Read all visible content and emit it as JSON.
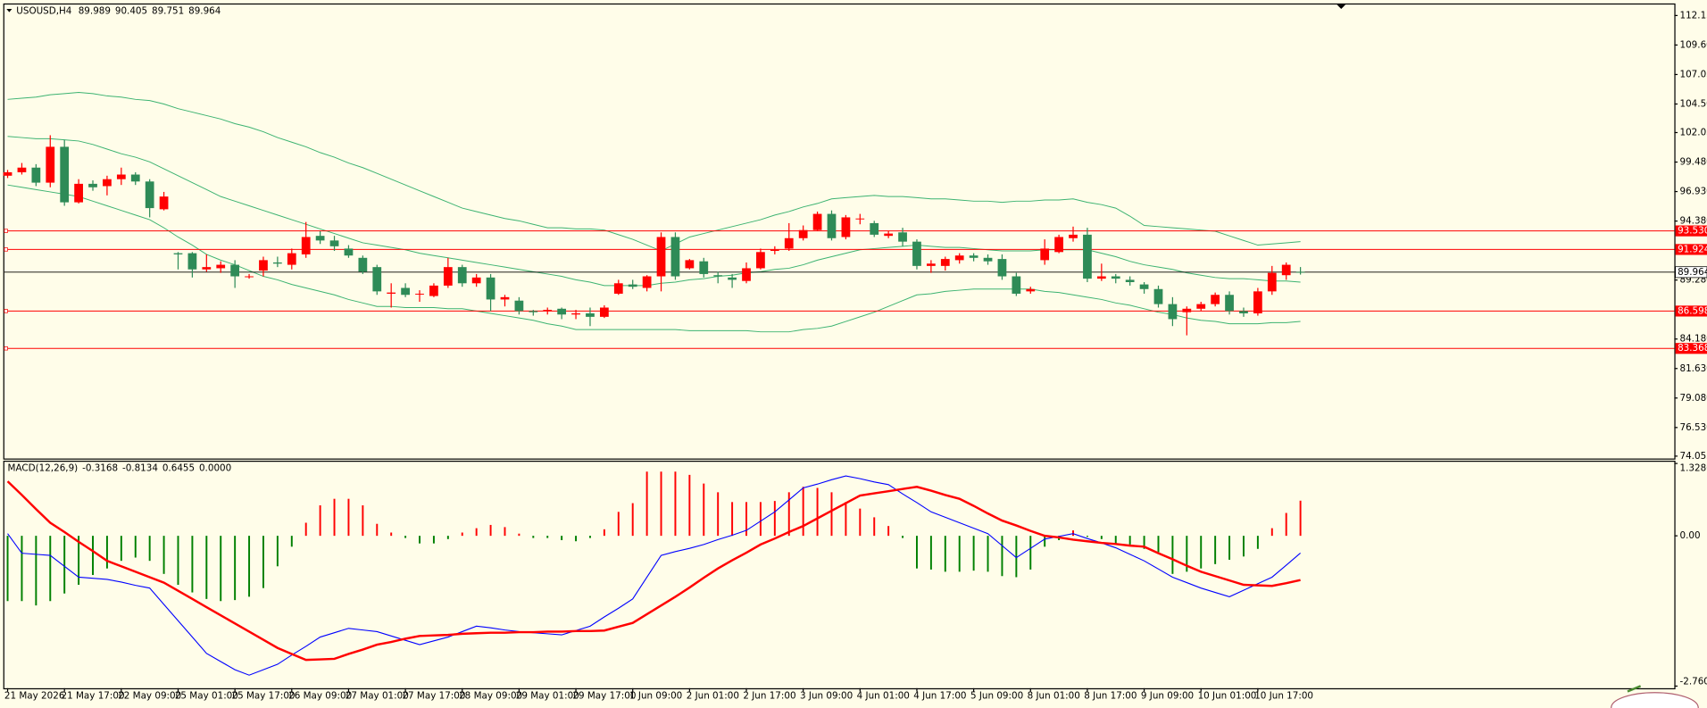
{
  "chart_data": [
    {
      "type": "candlestick",
      "title": "USOUSD,H4",
      "categories": [
        "21 May 2026",
        null,
        null,
        null,
        "21 May 17:00",
        null,
        null,
        null,
        "22 May 09:00",
        null,
        null,
        null,
        "25 May 01:00",
        null,
        null,
        null,
        "25 May 17:00",
        null,
        null,
        null,
        "26 May 09:00",
        null,
        null,
        null,
        "27 May 01:00",
        null,
        null,
        null,
        "27 May 17:00",
        null,
        null,
        null,
        "28 May 09:00",
        null,
        null,
        null,
        "29 May 01:00",
        null,
        null,
        null,
        "29 May 17:00",
        null,
        null,
        null,
        "1 Jun 09:00",
        null,
        null,
        null,
        "2 Jun 01:00",
        null,
        null,
        null,
        "2 Jun 17:00",
        null,
        null,
        null,
        "3 Jun 09:00",
        null,
        null,
        null,
        "4 Jun 01:00",
        null,
        null,
        null,
        "4 Jun 17:00",
        null,
        null,
        null,
        "5 Jun 09:00",
        null,
        null,
        null,
        "8 Jun 01:00",
        null,
        null,
        null,
        "8 Jun 17:00",
        null,
        null,
        null,
        "9 Jun 09:00",
        null,
        null,
        null,
        "10 Jun 01:00",
        null,
        null,
        null,
        "10 Jun 17:00",
        null,
        null,
        null
      ],
      "open": [
        98.3,
        98.6,
        99.0,
        97.7,
        100.8,
        96.0,
        97.6,
        97.4,
        98.0,
        98.4,
        97.8,
        95.4,
        91.6,
        91.6,
        90.2,
        90.3,
        90.6,
        89.6,
        90.1,
        90.8,
        90.6,
        91.5,
        93.1,
        92.7,
        92.0,
        91.2,
        90.4,
        88.1,
        88.6,
        88.1,
        87.9,
        88.8,
        90.4,
        89.0,
        89.5,
        87.6,
        87.5,
        86.6,
        86.6,
        86.8,
        86.3,
        86.4,
        86.1,
        88.1,
        88.9,
        88.6,
        89.6,
        93.0,
        90.3,
        90.9,
        89.7,
        89.5,
        89.2,
        90.3,
        91.8,
        92.0,
        92.9,
        93.6,
        95.0,
        93.0,
        94.6,
        94.2,
        93.1,
        93.4,
        92.6,
        90.5,
        90.5,
        91.0,
        91.4,
        91.2,
        91.1,
        89.6,
        88.3,
        91.0,
        91.7,
        92.9,
        93.2,
        89.4,
        89.6,
        89.3,
        88.9,
        88.5,
        87.2,
        86.5,
        86.8,
        87.2,
        88.0,
        86.6,
        86.4,
        88.3,
        89.7,
        89.989
      ],
      "high": [
        98.8,
        99.4,
        99.3,
        101.8,
        101.4,
        98.0,
        97.9,
        98.3,
        99.0,
        98.6,
        98.0,
        96.9,
        91.7,
        91.7,
        91.5,
        90.9,
        91.0,
        89.8,
        91.3,
        91.3,
        92.0,
        94.3,
        93.5,
        93.1,
        92.3,
        91.4,
        90.6,
        89.0,
        89.0,
        88.4,
        89.0,
        91.2,
        90.6,
        89.8,
        89.8,
        88.0,
        87.8,
        86.7,
        86.9,
        86.9,
        86.7,
        86.9,
        87.1,
        89.3,
        89.3,
        89.7,
        93.4,
        93.4,
        91.1,
        91.2,
        90.0,
        89.8,
        90.8,
        92.0,
        92.2,
        94.2,
        94.0,
        95.2,
        95.3,
        94.9,
        95.0,
        94.4,
        93.5,
        93.8,
        92.8,
        91.0,
        91.3,
        91.6,
        91.6,
        91.5,
        91.5,
        89.9,
        88.7,
        92.8,
        93.2,
        93.9,
        93.8,
        90.7,
        89.8,
        89.6,
        89.1,
        88.8,
        87.8,
        87.0,
        87.4,
        88.2,
        88.3,
        86.9,
        88.6,
        90.5,
        90.8,
        90.405
      ],
      "low": [
        98.1,
        98.4,
        97.4,
        97.3,
        95.7,
        95.9,
        97.0,
        96.6,
        97.5,
        97.5,
        94.7,
        95.3,
        90.2,
        89.5,
        90.0,
        89.9,
        88.6,
        89.4,
        89.6,
        90.4,
        90.2,
        91.2,
        92.4,
        91.8,
        91.2,
        89.8,
        88.0,
        86.9,
        87.8,
        87.4,
        87.8,
        88.6,
        88.7,
        88.7,
        86.6,
        87.0,
        86.3,
        86.2,
        86.3,
        85.9,
        85.9,
        85.3,
        86.0,
        88.0,
        88.5,
        88.3,
        88.3,
        89.3,
        90.2,
        89.5,
        89.0,
        88.6,
        89.0,
        90.2,
        91.5,
        91.8,
        92.7,
        93.5,
        92.7,
        92.8,
        94.1,
        93.0,
        92.9,
        92.2,
        90.2,
        89.9,
        90.1,
        90.7,
        90.9,
        90.6,
        89.3,
        87.9,
        88.1,
        90.6,
        91.6,
        92.6,
        89.1,
        89.2,
        89.0,
        88.8,
        88.1,
        86.9,
        85.3,
        84.5,
        86.6,
        87.0,
        86.3,
        86.1,
        86.2,
        88.0,
        89.3,
        89.751
      ],
      "close": [
        98.6,
        99.0,
        97.7,
        100.8,
        96.0,
        97.6,
        97.3,
        98.0,
        98.4,
        97.8,
        95.5,
        96.5,
        91.5,
        90.2,
        90.4,
        90.6,
        89.6,
        89.6,
        91.0,
        90.7,
        91.6,
        93.0,
        92.7,
        92.2,
        91.4,
        90.0,
        88.3,
        88.2,
        88.0,
        88.1,
        88.8,
        90.4,
        89.0,
        89.5,
        87.6,
        87.8,
        86.6,
        86.5,
        86.7,
        86.3,
        86.4,
        86.1,
        86.9,
        89.0,
        88.7,
        89.6,
        93.0,
        89.6,
        91.0,
        89.8,
        89.6,
        89.3,
        90.3,
        91.7,
        91.9,
        92.9,
        93.6,
        95.0,
        92.9,
        94.7,
        94.6,
        93.2,
        93.3,
        92.6,
        90.5,
        90.7,
        91.1,
        91.4,
        91.2,
        90.9,
        89.6,
        88.1,
        88.5,
        92.0,
        93.0,
        93.2,
        89.4,
        89.6,
        89.4,
        89.1,
        88.5,
        87.2,
        85.9,
        86.8,
        87.2,
        88.0,
        86.6,
        86.4,
        88.3,
        89.9,
        90.6,
        89.964
      ],
      "up_color": "#ff0000",
      "down_color": "#2e8b57",
      "bands": {
        "color": "#3cb371",
        "upper": [
          104.9,
          105.0,
          105.1,
          105.3,
          105.4,
          105.5,
          105.4,
          105.2,
          105.1,
          104.9,
          104.8,
          104.5,
          104.1,
          103.8,
          103.5,
          103.2,
          102.8,
          102.5,
          102.1,
          101.6,
          101.2,
          100.8,
          100.3,
          99.9,
          99.4,
          99.0,
          98.5,
          98.0,
          97.5,
          97.0,
          96.5,
          96.0,
          95.5,
          95.2,
          94.9,
          94.6,
          94.4,
          94.1,
          93.8,
          93.8,
          93.7,
          93.7,
          93.6,
          93.2,
          92.8,
          92.3,
          91.8,
          92.4,
          93.0,
          93.3,
          93.6,
          93.9,
          94.2,
          94.5,
          94.9,
          95.2,
          95.6,
          95.9,
          96.3,
          96.4,
          96.5,
          96.6,
          96.5,
          96.5,
          96.4,
          96.3,
          96.3,
          96.2,
          96.1,
          96.1,
          96.0,
          96.1,
          96.1,
          96.2,
          96.2,
          96.3,
          96.0,
          95.8,
          95.5,
          94.8,
          94.0,
          93.9,
          93.8,
          93.7,
          93.6,
          93.5,
          93.1,
          92.7,
          92.3,
          92.4,
          92.5,
          92.6
        ],
        "middle": [
          101.7,
          101.6,
          101.5,
          101.5,
          101.4,
          101.3,
          101.0,
          100.6,
          100.2,
          99.9,
          99.5,
          98.9,
          98.3,
          97.7,
          97.1,
          96.5,
          96.1,
          95.7,
          95.3,
          94.9,
          94.5,
          94.1,
          93.7,
          93.3,
          92.9,
          92.5,
          92.3,
          92.1,
          91.9,
          91.6,
          91.4,
          91.2,
          91.0,
          90.8,
          90.6,
          90.4,
          90.2,
          90.0,
          89.8,
          89.6,
          89.3,
          89.1,
          88.8,
          88.8,
          88.8,
          88.8,
          89.0,
          89.1,
          89.3,
          89.4,
          89.6,
          89.7,
          89.9,
          90.0,
          90.2,
          90.3,
          90.6,
          91.0,
          91.3,
          91.6,
          91.9,
          92.0,
          92.1,
          92.2,
          92.3,
          92.2,
          92.1,
          92.1,
          92.0,
          91.9,
          91.8,
          91.8,
          91.8,
          91.9,
          91.9,
          91.9,
          91.9,
          91.6,
          91.3,
          90.9,
          90.6,
          90.4,
          90.2,
          89.9,
          89.7,
          89.5,
          89.4,
          89.4,
          89.3,
          89.2,
          89.2,
          89.1
        ],
        "lower": [
          97.5,
          97.3,
          97.1,
          96.9,
          96.7,
          96.5,
          96.1,
          95.7,
          95.3,
          94.9,
          94.5,
          93.8,
          93.0,
          92.3,
          91.5,
          91.0,
          90.6,
          90.1,
          89.6,
          89.3,
          88.9,
          88.6,
          88.3,
          88.0,
          87.6,
          87.3,
          87.0,
          87.0,
          86.9,
          86.9,
          86.9,
          86.8,
          86.8,
          86.6,
          86.4,
          86.2,
          86.0,
          85.8,
          85.5,
          85.3,
          85.0,
          85.0,
          85.0,
          85.0,
          85.0,
          85.0,
          85.0,
          85.0,
          84.9,
          84.9,
          84.9,
          84.9,
          84.9,
          84.8,
          84.8,
          84.8,
          85.0,
          85.1,
          85.3,
          85.7,
          86.1,
          86.5,
          87.0,
          87.5,
          88.0,
          88.1,
          88.3,
          88.4,
          88.5,
          88.5,
          88.5,
          88.5,
          88.5,
          88.3,
          88.2,
          88.0,
          87.8,
          87.6,
          87.3,
          87.1,
          86.8,
          86.5,
          86.3,
          86.0,
          85.8,
          85.7,
          85.5,
          85.5,
          85.5,
          85.6,
          85.6,
          85.7
        ]
      },
      "levels": {
        "color": "#ff0000",
        "values": [
          93.53,
          91.924,
          86.598,
          83.368
        ],
        "value_labels": [
          "93.530",
          "91.924",
          "86.598",
          "83.368"
        ]
      },
      "ylim": [
        73.85,
        113.1
      ],
      "yticks": [
        112.15,
        {
          "value": 109.6,
          "label": "109.60"
        },
        107.05,
        {
          "value": 104.5,
          "label": "104.50"
        },
        102.03,
        {
          "value": 99.48,
          "label": "99.480"
        },
        {
          "value": 96.93,
          "label": "96.930"
        },
        {
          "value": 94.38,
          "label": "94.380"
        },
        {
          "value": 89.28,
          "label": "89.280"
        },
        {
          "value": 84.18,
          "label": "84.180"
        },
        {
          "value": 81.63,
          "label": "81.630"
        },
        {
          "value": 79.08,
          "label": "79.080"
        },
        {
          "value": 76.53,
          "label": "76.530"
        },
        74.055
      ]
    },
    {
      "type": "macd",
      "title": "MACD(12,26,9)",
      "histogram": {
        "up_color": "#ff0000",
        "down_color": "#008000",
        "values": [
          -1.2,
          -1.2,
          -1.28,
          -1.2,
          -1.06,
          -0.9,
          -0.72,
          -0.6,
          -0.46,
          -0.4,
          -0.46,
          -0.7,
          -0.9,
          -1.04,
          -1.16,
          -1.2,
          -1.18,
          -1.12,
          -0.96,
          -0.56,
          -0.2,
          0.24,
          0.56,
          0.68,
          0.68,
          0.56,
          0.22,
          0.06,
          -0.04,
          -0.14,
          -0.14,
          -0.06,
          0.06,
          0.14,
          0.2,
          0.16,
          0.04,
          -0.04,
          -0.04,
          -0.08,
          -0.1,
          -0.04,
          0.12,
          0.44,
          0.6,
          1.18,
          1.18,
          1.18,
          1.12,
          0.96,
          0.8,
          0.62,
          0.62,
          0.62,
          0.64,
          0.8,
          0.9,
          0.88,
          0.8,
          0.62,
          0.5,
          0.34,
          0.18,
          -0.04,
          -0.6,
          -0.62,
          -0.66,
          -0.66,
          -0.64,
          -0.66,
          -0.74,
          -0.76,
          -0.62,
          -0.2,
          -0.08,
          0.1,
          -0.02,
          -0.06,
          -0.14,
          -0.16,
          -0.24,
          -0.3,
          -0.7,
          -0.66,
          -0.6,
          -0.52,
          -0.44,
          -0.38,
          -0.24,
          0.14,
          0.42,
          0.6455
        ]
      },
      "series": [
        {
          "color": "#0000ff",
          "values": [
            0.04,
            -0.32,
            -0.34,
            -0.36,
            -0.56,
            -0.76,
            -0.78,
            -0.8,
            -0.85,
            -0.91,
            -0.96,
            -1.26,
            -1.56,
            -1.86,
            -2.16,
            -2.31,
            -2.46,
            -2.56,
            -2.46,
            -2.36,
            -2.19,
            -2.03,
            -1.86,
            -1.78,
            -1.7,
            -1.73,
            -1.76,
            -1.84,
            -1.92,
            -2.0,
            -1.93,
            -1.86,
            -1.76,
            -1.66,
            -1.69,
            -1.73,
            -1.76,
            -1.78,
            -1.8,
            -1.82,
            -1.74,
            -1.66,
            -1.49,
            -1.33,
            -1.16,
            -0.76,
            -0.36,
            -0.29,
            -0.23,
            -0.16,
            -0.07,
            0.01,
            0.1,
            0.27,
            0.44,
            0.66,
            0.88,
            0.95,
            1.03,
            1.1,
            1.05,
            0.99,
            0.94,
            0.77,
            0.61,
            0.44,
            0.34,
            0.24,
            0.14,
            0.04,
            -0.18,
            -0.4,
            -0.23,
            -0.06,
            -0.01,
            0.04,
            -0.05,
            -0.13,
            -0.22,
            -0.34,
            -0.46,
            -0.61,
            -0.76,
            -0.86,
            -0.96,
            -1.04,
            -1.12,
            -1.0,
            -0.88,
            -0.76,
            -0.54,
            -0.3168
          ]
        },
        {
          "color": "#ff0000",
          "values": [
            1.0,
            0.75,
            0.49,
            0.24,
            0.07,
            -0.11,
            -0.28,
            -0.46,
            -0.56,
            -0.66,
            -0.76,
            -0.86,
            -1.01,
            -1.16,
            -1.31,
            -1.46,
            -1.61,
            -1.76,
            -1.91,
            -2.06,
            -2.17,
            -2.28,
            -2.27,
            -2.26,
            -2.17,
            -2.09,
            -2.0,
            -1.95,
            -1.89,
            -1.84,
            -1.83,
            -1.82,
            -1.8,
            -1.79,
            -1.78,
            -1.78,
            -1.77,
            -1.77,
            -1.76,
            -1.76,
            -1.75,
            -1.75,
            -1.74,
            -1.67,
            -1.6,
            -1.44,
            -1.28,
            -1.12,
            -0.95,
            -0.77,
            -0.6,
            -0.45,
            -0.31,
            -0.16,
            -0.05,
            0.07,
            0.18,
            0.32,
            0.46,
            0.6,
            0.74,
            0.78,
            0.82,
            0.86,
            0.9,
            0.83,
            0.75,
            0.68,
            0.55,
            0.41,
            0.28,
            0.19,
            0.09,
            0,
            -0.03,
            -0.07,
            -0.1,
            -0.13,
            -0.15,
            -0.18,
            -0.2,
            -0.32,
            -0.43,
            -0.55,
            -0.66,
            -0.74,
            -0.82,
            -0.9,
            -0.91,
            -0.92,
            -0.87,
            -0.8134
          ]
        }
      ],
      "down_label": "0.0000",
      "ylim": [
        -2.8,
        1.36
      ],
      "yticks": [
        1.3286,
        {
          "value": 0,
          "label": "0.00"
        },
        -2.7609
      ]
    }
  ]
}
